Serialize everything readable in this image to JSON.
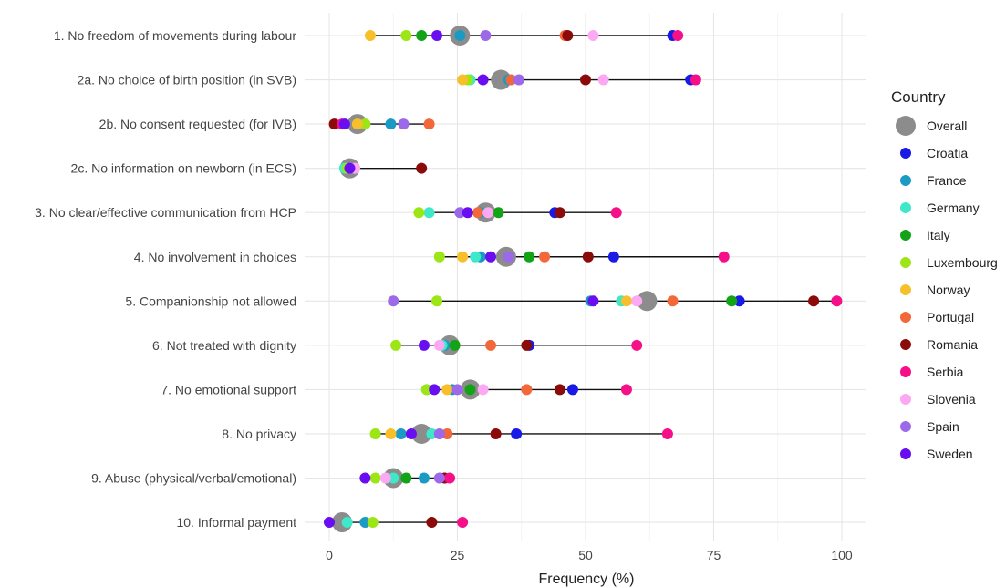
{
  "chart_data": {
    "type": "scatter",
    "xlabel": "Frequency (%)",
    "xlim": [
      -5,
      104
    ],
    "x_ticks": [
      0,
      25,
      50,
      75,
      100
    ],
    "categories": [
      "1. No freedom of movements during labour",
      "2a. No choice of birth position (in SVB)",
      "2b. No consent requested (for IVB)",
      "2c. No information on newborn (in ECS)",
      "3. No clear/effective communication from HCP",
      "4. No involvement in choices",
      "5. Companionship not allowed",
      "6. Not treated with dignity",
      "7. No emotional support",
      "8. No privacy",
      "9. Abuse (physical/verbal/emotional)",
      "10. Informal payment"
    ],
    "legend": {
      "title": "Country",
      "placement": "right",
      "entries": [
        "Overall",
        "Croatia",
        "France",
        "Germany",
        "Italy",
        "Luxembourg",
        "Norway",
        "Portugal",
        "Romania",
        "Serbia",
        "Slovenia",
        "Spain",
        "Sweden"
      ]
    },
    "series": [
      {
        "name": "Overall",
        "color": "#8c8c8c",
        "values": [
          25.5,
          33.5,
          5.5,
          4.0,
          30.5,
          34.5,
          62.0,
          23.5,
          27.5,
          18.0,
          12.5,
          2.5
        ]
      },
      {
        "name": "Croatia",
        "color": "#1a1ae6",
        "values": [
          67.0,
          70.5,
          null,
          null,
          44.0,
          55.5,
          80.0,
          39.0,
          47.5,
          36.5,
          null,
          null
        ]
      },
      {
        "name": "France",
        "color": "#1b9ac4",
        "values": [
          25.5,
          35.0,
          12.0,
          null,
          29.5,
          29.5,
          51.0,
          22.5,
          24.0,
          14.0,
          18.5,
          7.0
        ]
      },
      {
        "name": "Germany",
        "color": "#3ee8c8",
        "values": [
          null,
          27.5,
          null,
          3.0,
          19.5,
          28.5,
          57.0,
          22.0,
          19.0,
          20.0,
          12.5,
          3.5
        ]
      },
      {
        "name": "Italy",
        "color": "#13a316",
        "values": [
          18.0,
          null,
          null,
          null,
          33.0,
          39.0,
          78.5,
          24.5,
          27.5,
          null,
          15.0,
          null
        ]
      },
      {
        "name": "Luxembourg",
        "color": "#9be614",
        "values": [
          15.0,
          27.0,
          7.0,
          3.5,
          17.5,
          21.5,
          21.0,
          13.0,
          19.0,
          9.0,
          9.0,
          8.5
        ]
      },
      {
        "name": "Norway",
        "color": "#f7c02b",
        "values": [
          8.0,
          26.0,
          5.5,
          null,
          null,
          26.0,
          58.0,
          null,
          23.0,
          12.0,
          null,
          null
        ]
      },
      {
        "name": "Portugal",
        "color": "#f2683a",
        "values": [
          46.0,
          35.5,
          19.5,
          null,
          29.0,
          42.0,
          67.0,
          31.5,
          38.5,
          23.0,
          22.5,
          null
        ]
      },
      {
        "name": "Romania",
        "color": "#8b0b0b",
        "values": [
          46.5,
          50.0,
          1.0,
          18.0,
          45.0,
          50.5,
          94.5,
          38.5,
          45.0,
          32.5,
          22.5,
          20.0
        ]
      },
      {
        "name": "Serbia",
        "color": "#f50f88",
        "values": [
          68.0,
          71.5,
          2.5,
          null,
          56.0,
          77.0,
          99.0,
          60.0,
          58.0,
          66.0,
          23.5,
          26.0
        ]
      },
      {
        "name": "Slovenia",
        "color": "#fca8f2",
        "values": [
          51.5,
          53.5,
          null,
          5.0,
          31.0,
          null,
          60.0,
          21.5,
          30.0,
          null,
          11.0,
          null
        ]
      },
      {
        "name": "Spain",
        "color": "#9c69e8",
        "values": [
          30.5,
          37.0,
          14.5,
          null,
          25.5,
          35.0,
          12.5,
          null,
          25.0,
          21.5,
          21.5,
          null
        ]
      },
      {
        "name": "Sweden",
        "color": "#6a0ef2",
        "values": [
          21.0,
          30.0,
          3.0,
          4.0,
          27.0,
          31.5,
          51.5,
          18.5,
          20.5,
          16.0,
          7.0,
          0.0
        ]
      }
    ]
  }
}
